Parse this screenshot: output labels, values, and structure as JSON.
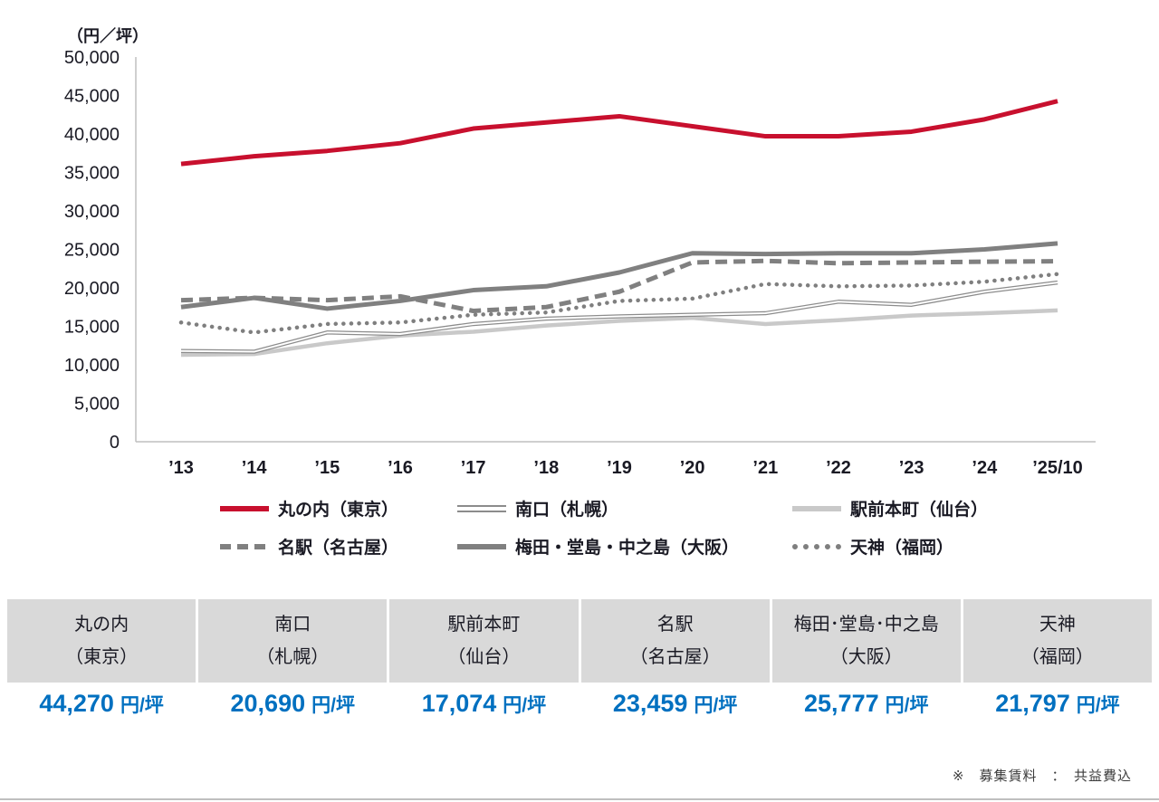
{
  "page": {
    "unit_label": "（円／坪）",
    "footnote": "※　募集賃料　：　共益費込"
  },
  "colors": {
    "tokyo_red": "#c8102e",
    "gray_dark": "#808080",
    "gray_double": "#8c8c8c",
    "gray_light": "#c9c9c9",
    "value_blue": "#0070c0",
    "table_header_bg": "#d9d9d9",
    "axis_text": "#1a1a24",
    "axis_line": "#bfbfbf"
  },
  "chart_data": {
    "type": "line",
    "title": "",
    "ylabel": "（円／坪）",
    "xlabel": "",
    "grid": false,
    "legend_position": "bottom",
    "x": [
      "’13",
      "’14",
      "’15",
      "’16",
      "’17",
      "’18",
      "’19",
      "’20",
      "’21",
      "’22",
      "’23",
      "’24",
      "’25/10"
    ],
    "ylim": [
      0,
      50000
    ],
    "ytick_interval": 5000,
    "ytick_labels": [
      "0",
      "5,000",
      "10,000",
      "15,000",
      "20,000",
      "25,000",
      "30,000",
      "35,000",
      "40,000",
      "45,000",
      "50,000"
    ],
    "series": [
      {
        "key": "marunouchi-tokyo",
        "name": "丸の内（東京）",
        "style": "red-thick",
        "color": "#c8102e",
        "values": [
          36100,
          37100,
          37800,
          38800,
          40700,
          41500,
          42300,
          41000,
          39700,
          39700,
          40300,
          41900,
          44270
        ]
      },
      {
        "key": "minamiguchi-sapporo",
        "name": "南口（札幌）",
        "style": "double-thin",
        "color": "#8c8c8c",
        "values": [
          11800,
          11700,
          14200,
          14000,
          15300,
          16000,
          16300,
          16500,
          16700,
          18200,
          17800,
          19500,
          20690
        ]
      },
      {
        "key": "ekimaehoncho-sendai",
        "name": "駅前本町（仙台）",
        "style": "light-thick",
        "color": "#c9c9c9",
        "values": [
          11300,
          11400,
          12800,
          13800,
          14300,
          15100,
          15700,
          16100,
          15300,
          15800,
          16400,
          16700,
          17074
        ]
      },
      {
        "key": "meieki-nagoya",
        "name": "名駅（名古屋）",
        "style": "dashed-thick",
        "color": "#808080",
        "values": [
          18400,
          18700,
          18400,
          18900,
          17000,
          17500,
          19500,
          23300,
          23500,
          23200,
          23300,
          23400,
          23459
        ]
      },
      {
        "key": "umeda-dojima-nakanoshima-osaka",
        "name": "梅田・堂島・中之島（大阪）",
        "style": "gray-thick",
        "color": "#808080",
        "values": [
          17500,
          18700,
          17300,
          18300,
          19700,
          20200,
          22000,
          24500,
          24400,
          24500,
          24500,
          25000,
          25777
        ]
      },
      {
        "key": "tenjin-fukuoka",
        "name": "天神（福岡）",
        "style": "dotted",
        "color": "#7f7f7f",
        "values": [
          15500,
          14200,
          15300,
          15500,
          16500,
          16800,
          18300,
          18600,
          20500,
          20200,
          20300,
          20800,
          21797
        ]
      }
    ]
  },
  "legend": {
    "items": [
      {
        "key": "marunouchi-tokyo",
        "label": "丸の内（東京）",
        "style": "red-thick",
        "row": 0,
        "col": 0
      },
      {
        "key": "minamiguchi-sapporo",
        "label": "南口（札幌）",
        "style": "double-thin",
        "row": 0,
        "col": 1
      },
      {
        "key": "ekimaehoncho-sendai",
        "label": "駅前本町（仙台）",
        "style": "light-thick",
        "row": 0,
        "col": 2
      },
      {
        "key": "meieki-nagoya",
        "label": "名駅（名古屋）",
        "style": "dashed-thick",
        "row": 1,
        "col": 0
      },
      {
        "key": "umeda-dojima-nakanoshima-osaka",
        "label": "梅田・堂島・中之島（大阪）",
        "style": "gray-thick",
        "row": 1,
        "col": 1
      },
      {
        "key": "tenjin-fukuoka",
        "label": "天神（福岡）",
        "style": "dotted",
        "row": 1,
        "col": 2
      }
    ]
  },
  "table": {
    "columns": [
      {
        "key": "marunouchi-tokyo",
        "name_line1": "丸の内",
        "name_line2": "（東京）",
        "value": "44,270",
        "unit": "円/坪"
      },
      {
        "key": "minamiguchi-sapporo",
        "name_line1": "南口",
        "name_line2": "（札幌）",
        "value": "20,690",
        "unit": "円/坪"
      },
      {
        "key": "ekimaehoncho-sendai",
        "name_line1": "駅前本町",
        "name_line2": "（仙台）",
        "value": "17,074",
        "unit": "円/坪"
      },
      {
        "key": "meieki-nagoya",
        "name_line1": "名駅",
        "name_line2": "（名古屋）",
        "value": "23,459",
        "unit": "円/坪"
      },
      {
        "key": "umeda-dojima-nakanoshima-osaka",
        "name_line1": "梅田･堂島･中之島",
        "name_line2": "（大阪）",
        "value": "25,777",
        "unit": "円/坪"
      },
      {
        "key": "tenjin-fukuoka",
        "name_line1": "天神",
        "name_line2": "（福岡）",
        "value": "21,797",
        "unit": "円/坪"
      }
    ]
  }
}
